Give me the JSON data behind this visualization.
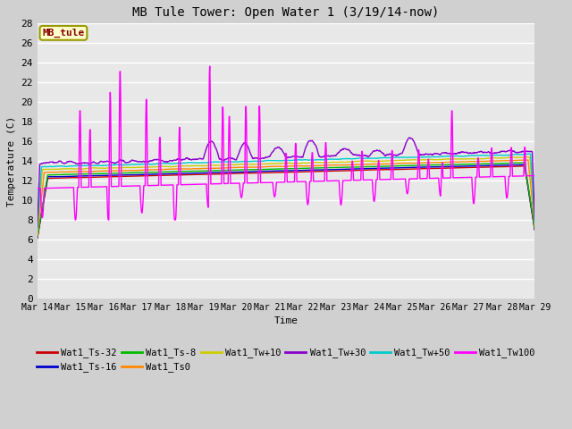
{
  "title": "MB Tule Tower: Open Water 1 (3/19/14-now)",
  "xlabel": "Time",
  "ylabel": "Temperature (C)",
  "ylim": [
    0,
    28
  ],
  "yticks": [
    0,
    2,
    4,
    6,
    8,
    10,
    12,
    14,
    16,
    18,
    20,
    22,
    24,
    26,
    28
  ],
  "x_labels": [
    "Mar 14",
    "Mar 15",
    "Mar 16",
    "Mar 17",
    "Mar 18",
    "Mar 19",
    "Mar 20",
    "Mar 21",
    "Mar 22",
    "Mar 23",
    "Mar 24",
    "Mar 25",
    "Mar 26",
    "Mar 27",
    "Mar 28",
    "Mar 29"
  ],
  "series_colors": {
    "Wat1_Ts-32": "#cc0000",
    "Wat1_Ts-16": "#0000cc",
    "Wat1_Ts-8": "#00bb00",
    "Wat1_Ts0": "#ff8800",
    "Wat1_Tw+10": "#cccc00",
    "Wat1_Tw+30": "#8800cc",
    "Wat1_Tw+50": "#00cccc",
    "Wat1_Tw100": "#ff00ff"
  },
  "bg_color": "#e8e8e8",
  "grid_color": "#ffffff",
  "fig_bg": "#d0d0d0",
  "label_box_bg": "#ffffcc",
  "label_box_edge": "#999900",
  "label_box_text": "#880000",
  "label_text": "MB_tule"
}
